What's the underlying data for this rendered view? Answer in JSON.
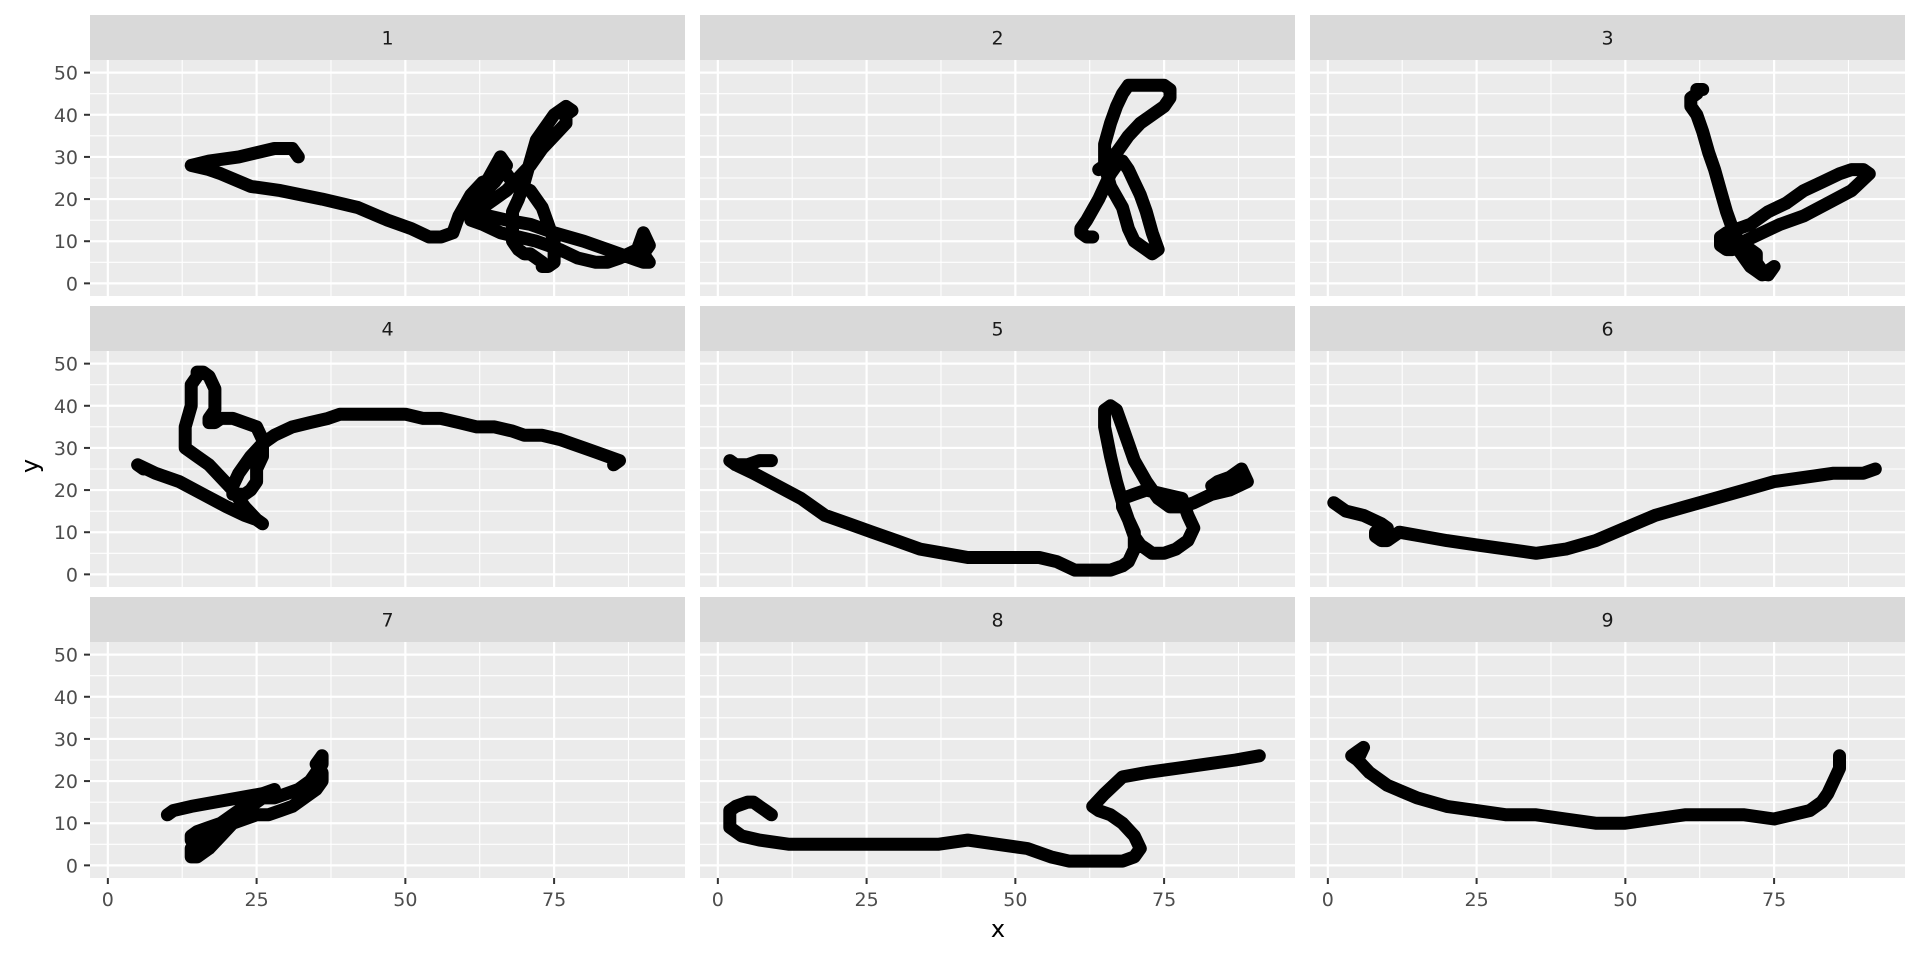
{
  "chart_data": {
    "type": "scatter",
    "facet": "wrap",
    "xlabel": "x",
    "ylabel": "y",
    "xlim": [
      -3,
      97
    ],
    "ylim": [
      -3,
      53
    ],
    "x_ticks": [
      0,
      25,
      50,
      75
    ],
    "y_ticks": [
      0,
      10,
      20,
      30,
      40,
      50
    ],
    "point_color": "#000000",
    "panel_bg": "#EBEBEB",
    "strip_bg": "#D9D9D9",
    "panels": [
      {
        "label": "1",
        "x": [
          32,
          31,
          28,
          22,
          17,
          14,
          14,
          17,
          19,
          24,
          29,
          36,
          42,
          47,
          51,
          54,
          56,
          58,
          59,
          61,
          63,
          65,
          66,
          66,
          64,
          63,
          62,
          63,
          65,
          67,
          69,
          71,
          73,
          75,
          77,
          77,
          78,
          77,
          75,
          74,
          72,
          71,
          70,
          69,
          68,
          68,
          68,
          69,
          70,
          71,
          72,
          73,
          73,
          74,
          75,
          75,
          74,
          73,
          71,
          68,
          67,
          66,
          66,
          67,
          65,
          62,
          61,
          61,
          64,
          67,
          71,
          75,
          80,
          84,
          86,
          88,
          90,
          91,
          90,
          91,
          90,
          89,
          86,
          84,
          82,
          79,
          76,
          72,
          69,
          66,
          63,
          61,
          61
        ],
        "y": [
          30,
          32,
          32,
          30,
          29,
          28,
          28,
          27,
          26,
          23,
          22,
          20,
          18,
          15,
          13,
          11,
          11,
          12,
          16,
          21,
          24,
          25,
          27,
          30,
          25,
          22,
          19,
          18,
          20,
          22,
          25,
          28,
          32,
          35,
          38,
          40,
          41,
          42,
          40,
          38,
          34,
          29,
          24,
          20,
          17,
          13,
          10,
          8,
          7,
          7,
          6,
          5,
          4,
          4,
          5,
          10,
          14,
          18,
          22,
          24,
          26,
          28,
          30,
          28,
          24,
          20,
          17,
          17,
          16,
          15,
          14,
          12,
          10,
          8,
          7,
          6,
          5,
          5,
          7,
          9,
          12,
          8,
          6,
          5,
          5,
          6,
          8,
          10,
          11,
          12,
          14,
          15,
          17
        ]
      },
      {
        "label": "2",
        "x": [
          63,
          62,
          61,
          61,
          62,
          64,
          65,
          66,
          67,
          68,
          69,
          70,
          71,
          72,
          73,
          74,
          73,
          72,
          71,
          70,
          69,
          68,
          66,
          65,
          65,
          66,
          67,
          68,
          69,
          71,
          73,
          75,
          76,
          76,
          75,
          73,
          71,
          69,
          68,
          67,
          66,
          65,
          65,
          64
        ],
        "y": [
          11,
          11,
          12,
          13,
          15,
          20,
          23,
          26,
          28,
          29,
          27,
          24,
          21,
          17,
          12,
          8,
          7,
          8,
          9,
          10,
          13,
          18,
          23,
          28,
          33,
          38,
          42,
          45,
          47,
          47,
          47,
          47,
          46,
          44,
          42,
          40,
          38,
          35,
          33,
          31,
          30,
          30,
          28,
          27
        ]
      },
      {
        "label": "3",
        "x": [
          63,
          62,
          62,
          61,
          61,
          62,
          63,
          64,
          65,
          66,
          67,
          68,
          69,
          70,
          72,
          73,
          74,
          75,
          74,
          73,
          72,
          71,
          70,
          69,
          68,
          67,
          66,
          66,
          67,
          68,
          70,
          73,
          76,
          80,
          84,
          88,
          91,
          90,
          88,
          86,
          83,
          80,
          77,
          74,
          71,
          69,
          67,
          66,
          66,
          67,
          68,
          69,
          70,
          71,
          72,
          72,
          72
        ],
        "y": [
          46,
          46,
          45,
          44,
          42,
          40,
          36,
          31,
          27,
          22,
          17,
          13,
          10,
          7,
          5,
          3,
          2,
          4,
          3,
          2,
          3,
          4,
          6,
          8,
          10,
          11,
          10,
          9,
          8,
          8,
          10,
          12,
          14,
          16,
          19,
          22,
          26,
          27,
          27,
          26,
          24,
          22,
          19,
          17,
          14,
          13,
          12,
          11,
          10,
          10,
          9,
          9,
          9,
          8,
          7,
          6,
          5
        ]
      },
      {
        "label": "4",
        "x": [
          6,
          5,
          8,
          12,
          16,
          20,
          23,
          25,
          26,
          25,
          23,
          21,
          19,
          17,
          15,
          13,
          13,
          14,
          14,
          15,
          15,
          16,
          17,
          18,
          18,
          17,
          17,
          18,
          19,
          21,
          23,
          25,
          26,
          26,
          25,
          25,
          24,
          23,
          22,
          21,
          21,
          22,
          24,
          26,
          28,
          31,
          34,
          37,
          39,
          41,
          44,
          47,
          50,
          53,
          56,
          59,
          62,
          65,
          68,
          70,
          73,
          76,
          78,
          80,
          82,
          84,
          86,
          86,
          85
        ],
        "y": [
          25,
          26,
          24,
          22,
          19,
          16,
          14,
          13,
          12,
          13,
          16,
          20,
          23,
          26,
          28,
          30,
          35,
          40,
          45,
          47,
          48,
          48,
          47,
          44,
          39,
          37,
          36,
          36,
          37,
          37,
          36,
          35,
          32,
          28,
          25,
          22,
          20,
          19,
          19,
          19,
          21,
          24,
          28,
          31,
          33,
          35,
          36,
          37,
          38,
          38,
          38,
          38,
          38,
          37,
          37,
          36,
          35,
          35,
          34,
          33,
          33,
          32,
          31,
          30,
          29,
          28,
          27,
          27,
          26
        ]
      },
      {
        "label": "5",
        "x": [
          9,
          7,
          5,
          3,
          2,
          3,
          6,
          10,
          14,
          18,
          22,
          26,
          30,
          34,
          38,
          42,
          46,
          50,
          54,
          57,
          60,
          63,
          66,
          68,
          69,
          70,
          70,
          69,
          68,
          68,
          70,
          72,
          75,
          78,
          79,
          80,
          79,
          77,
          75,
          74,
          73,
          72,
          71,
          70,
          69,
          68,
          67,
          66,
          65,
          65,
          66,
          67,
          68,
          69,
          70,
          72,
          74,
          76,
          77,
          78,
          80,
          83,
          86,
          89,
          88,
          86,
          84,
          83
        ],
        "y": [
          27,
          27,
          26,
          26,
          27,
          26,
          24,
          21,
          18,
          14,
          12,
          10,
          8,
          6,
          5,
          4,
          4,
          4,
          4,
          3,
          1,
          1,
          1,
          2,
          3,
          6,
          10,
          13,
          16,
          18,
          19,
          20,
          19,
          18,
          14,
          11,
          8,
          6,
          5,
          5,
          5,
          6,
          7,
          9,
          13,
          17,
          22,
          28,
          35,
          39,
          40,
          39,
          35,
          31,
          27,
          22,
          18,
          16,
          16,
          16,
          17,
          19,
          20,
          22,
          25,
          23,
          22,
          21
        ]
      },
      {
        "label": "6",
        "x": [
          1,
          3,
          6,
          9,
          10,
          9,
          8,
          8,
          9,
          10,
          12,
          16,
          20,
          25,
          30,
          35,
          40,
          45,
          50,
          55,
          60,
          65,
          70,
          75,
          80,
          85,
          90,
          92
        ],
        "y": [
          17,
          15,
          14,
          12,
          11,
          11,
          10,
          9,
          8,
          8,
          10,
          9,
          8,
          7,
          6,
          5,
          6,
          8,
          11,
          14,
          16,
          18,
          20,
          22,
          23,
          24,
          24,
          25
        ]
      },
      {
        "label": "7",
        "x": [
          10,
          11,
          14,
          18,
          22,
          26,
          28,
          27,
          25,
          23,
          21,
          19,
          17,
          15,
          14,
          14,
          15,
          16,
          18,
          20,
          22,
          24,
          26,
          28,
          30,
          32,
          34,
          35,
          36,
          36,
          35,
          36,
          36,
          35,
          33,
          31,
          29,
          27,
          25,
          23,
          21,
          19,
          17,
          15,
          14,
          14,
          15
        ],
        "y": [
          12,
          13,
          14,
          15,
          16,
          17,
          18,
          17,
          15,
          13,
          10,
          7,
          4,
          2,
          2,
          4,
          5,
          7,
          9,
          11,
          13,
          15,
          16,
          16,
          17,
          18,
          20,
          22,
          24,
          26,
          24,
          22,
          20,
          18,
          16,
          14,
          13,
          12,
          12,
          11,
          10,
          10,
          9,
          8,
          7,
          6,
          5
        ]
      },
      {
        "label": "8",
        "x": [
          9,
          8,
          7,
          6,
          5,
          3,
          2,
          2,
          4,
          7,
          12,
          17,
          22,
          27,
          32,
          37,
          42,
          47,
          52,
          56,
          59,
          62,
          65,
          68,
          70,
          71,
          70,
          68,
          66,
          64,
          63,
          65,
          68,
          72,
          77,
          82,
          87,
          91
        ],
        "y": [
          12,
          13,
          14,
          15,
          15,
          14,
          13,
          9,
          7,
          6,
          5,
          5,
          5,
          5,
          5,
          5,
          6,
          5,
          4,
          2,
          1,
          1,
          1,
          1,
          2,
          4,
          7,
          10,
          12,
          13,
          14,
          17,
          21,
          22,
          23,
          24,
          25,
          26
        ]
      },
      {
        "label": "9",
        "x": [
          5,
          4,
          5,
          6,
          5,
          7,
          10,
          15,
          20,
          25,
          30,
          35,
          40,
          45,
          50,
          55,
          60,
          65,
          70,
          75,
          78,
          81,
          83,
          84,
          85,
          86,
          86,
          86
        ],
        "y": [
          25,
          26,
          27,
          28,
          25,
          22,
          19,
          16,
          14,
          13,
          12,
          12,
          11,
          10,
          10,
          11,
          12,
          12,
          12,
          11,
          12,
          13,
          15,
          17,
          20,
          23,
          25,
          26
        ]
      }
    ]
  }
}
